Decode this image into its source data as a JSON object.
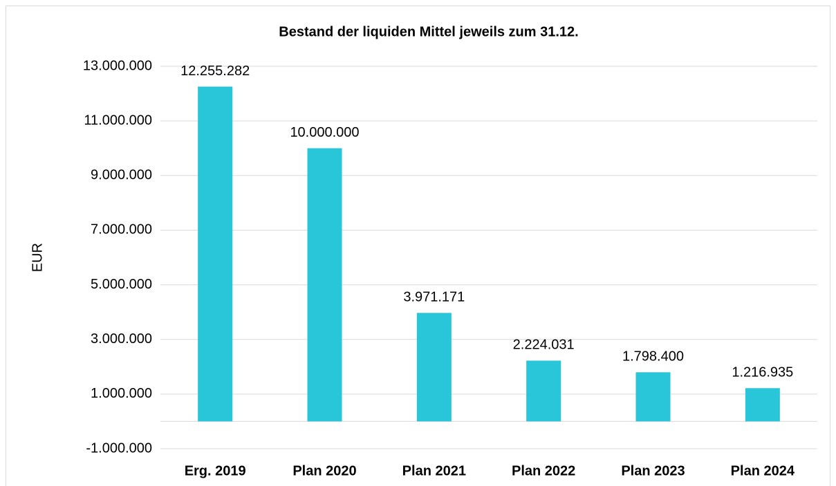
{
  "chart_data": {
    "type": "bar",
    "title": "Bestand der liquiden Mittel jeweils zum 31.12.",
    "y_label": "EUR",
    "categories": [
      "Erg. 2019",
      "Plan 2020",
      "Plan 2021",
      "Plan 2022",
      "Plan 2023",
      "Plan 2024"
    ],
    "values": [
      12255282,
      10000000,
      3971171,
      2224031,
      1798400,
      1216935
    ],
    "value_labels": [
      "12.255.282",
      "10.000.000",
      "3.971.171",
      "2.224.031",
      "1.798.400",
      "1.216.935"
    ],
    "color": "#29c5d8",
    "ylim": [
      -1000000,
      13000000
    ],
    "yticks": [
      {
        "value": -1000000,
        "label": "-1.000.000"
      },
      {
        "value": 1000000,
        "label": "1.000.000"
      },
      {
        "value": 3000000,
        "label": "3.000.000"
      },
      {
        "value": 5000000,
        "label": "5.000.000"
      },
      {
        "value": 7000000,
        "label": "7.000.000"
      },
      {
        "value": 9000000,
        "label": "9.000.000"
      },
      {
        "value": 11000000,
        "label": "11.000.000"
      },
      {
        "value": 13000000,
        "label": "13.000.000"
      }
    ],
    "grid": true
  }
}
